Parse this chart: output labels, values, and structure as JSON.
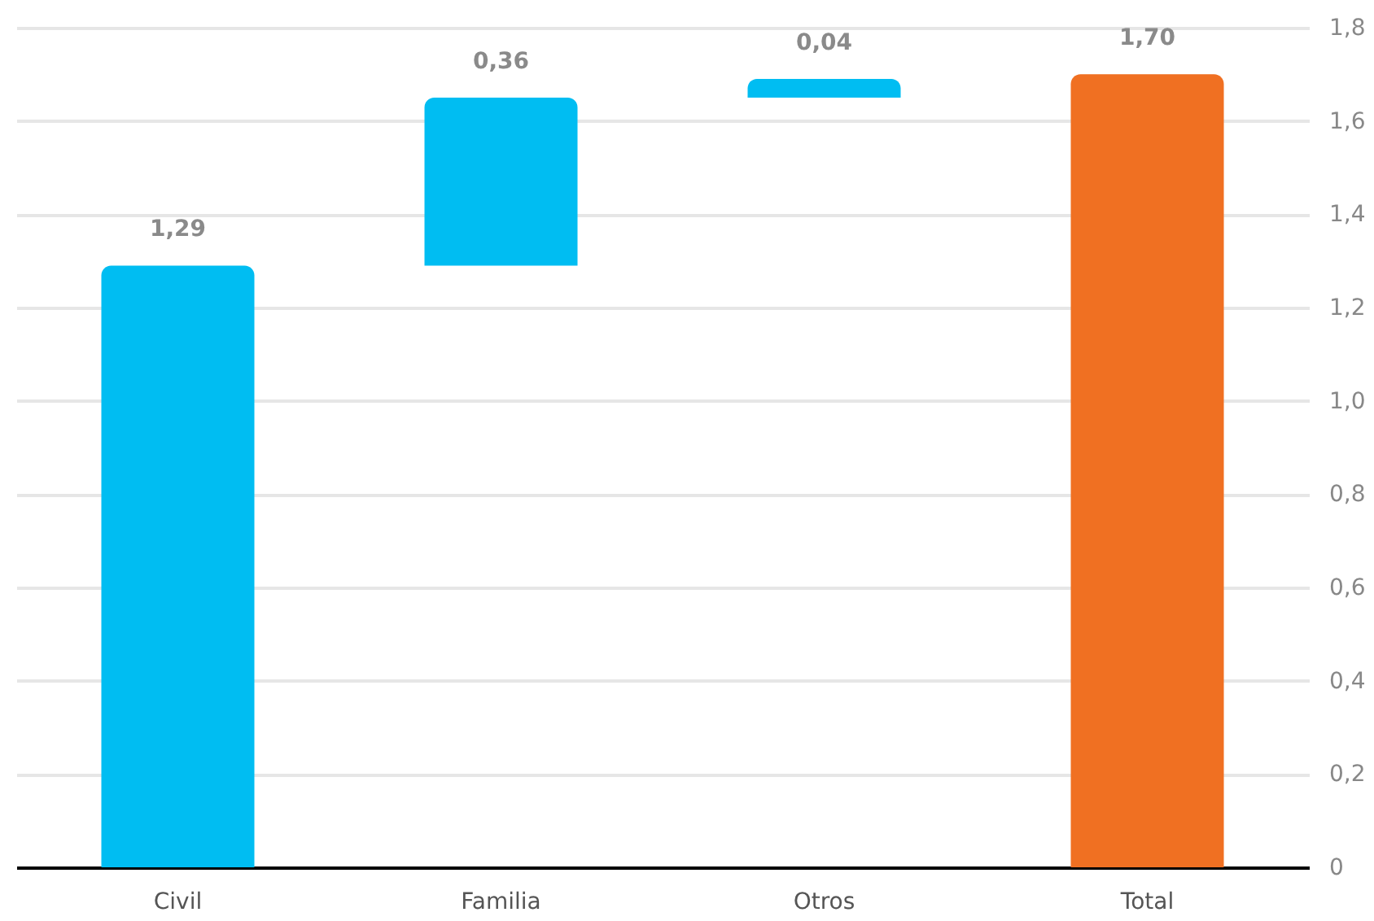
{
  "chart_data": {
    "type": "bar",
    "categories": [
      "Civil",
      "Familia",
      "Otros",
      "Total"
    ],
    "values": [
      1.29,
      0.36,
      0.04,
      1.7
    ],
    "base": [
      0,
      1.29,
      1.65,
      0
    ],
    "colors": [
      "#00bdf2",
      "#00bdf2",
      "#00bdf2",
      "#f07022"
    ],
    "value_labels": [
      "1,29",
      "0,36",
      "0,04",
      "1,70"
    ],
    "ylim": [
      0,
      1.8
    ],
    "yticks": [
      0,
      {
        "value": 0.2,
        "label": "0,2"
      },
      {
        "value": 0.4,
        "label": "0,4"
      },
      {
        "value": 0.6,
        "label": "0,6"
      },
      {
        "value": 0.8,
        "label": "0,8"
      },
      {
        "value": 1.0,
        "label": "1,0"
      },
      {
        "value": 1.2,
        "label": "1,2"
      },
      {
        "value": 1.4,
        "label": "1,4"
      },
      {
        "value": 1.6,
        "label": "1,6"
      },
      {
        "value": 1.8,
        "label": "1,8"
      }
    ],
    "grid": "y"
  }
}
